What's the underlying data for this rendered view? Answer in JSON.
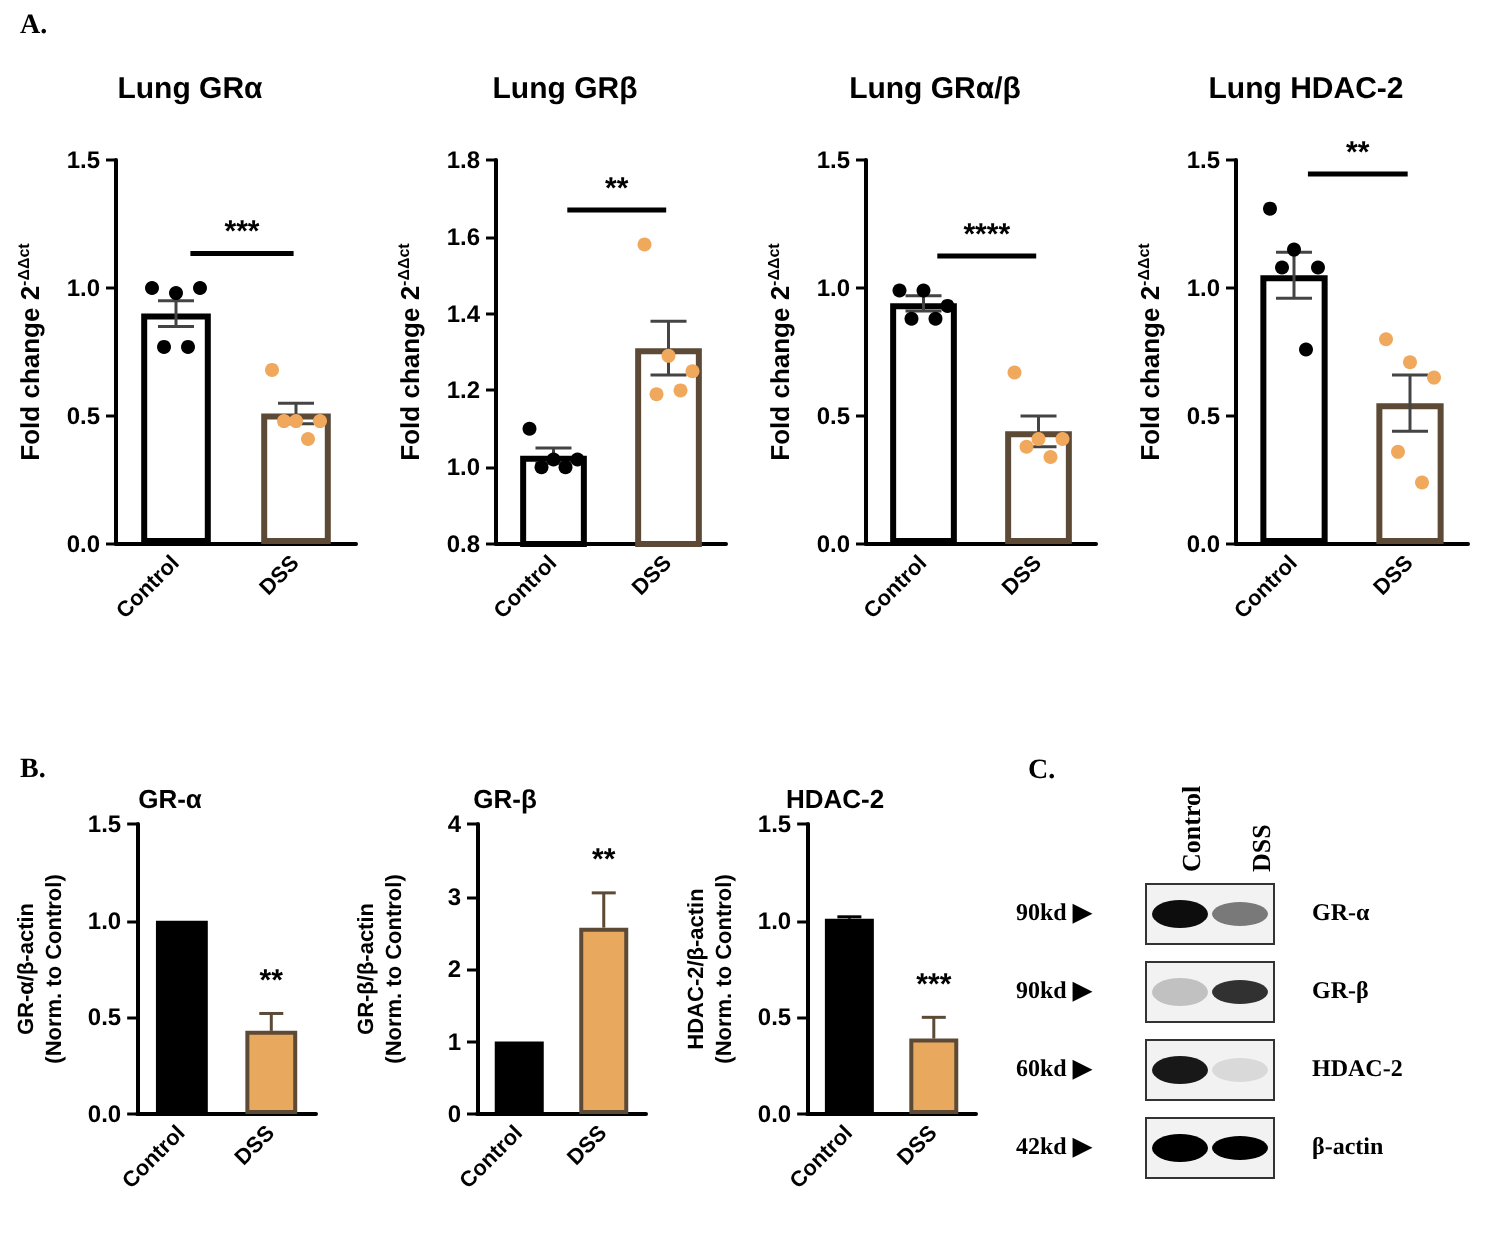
{
  "chart_data": [
    {
      "type": "bar",
      "title": "Lung GRα",
      "ylabel": "Fold change 2$^{-ΔΔct}$",
      "categories": [
        "Control",
        "DSS"
      ],
      "marker": "circle",
      "series": [
        {
          "type": "bar",
          "colors": [
            "#ffffff",
            "#ffffff"
          ],
          "values": [
            0.9,
            0.51
          ],
          "errors": [
            0.05,
            0.04
          ]
        },
        {
          "type": "scatter",
          "color": "#000000",
          "x": [
            "Control",
            "Control",
            "Control",
            "Control",
            "Control"
          ],
          "values": [
            1.0,
            0.98,
            1.0,
            0.77,
            0.77
          ]
        },
        {
          "type": "scatter",
          "color": "#f0a95c",
          "x": [
            "DSS",
            "DSS",
            "DSS",
            "DSS",
            "DSS"
          ],
          "values": [
            0.68,
            0.48,
            0.48,
            0.48,
            0.41
          ]
        }
      ],
      "ylim": [
        0,
        1.5
      ],
      "yticks": [
        {
          "value": 0,
          "label": "0.0"
        },
        {
          "value": 0.5,
          "label": "0.5"
        },
        {
          "value": 1,
          "label": "1.0"
        },
        {
          "value": 1.5,
          "label": "1.5"
        }
      ],
      "annotations": [
        "A.",
        "***"
      ]
    },
    {
      "type": "bar",
      "title": "Lung GRβ",
      "ylabel": "Fold change 2$^{-ΔΔct}$",
      "categories": [
        "Control",
        "DSS"
      ],
      "marker": "circle",
      "series": [
        {
          "type": "bar",
          "colors": [
            "#ffffff",
            "#ffffff"
          ],
          "values": [
            1.03,
            1.31
          ],
          "errors": [
            0.02,
            0.07
          ]
        },
        {
          "type": "scatter",
          "color": "#000000",
          "x": [
            "Control",
            "Control",
            "Control",
            "Control",
            "Control"
          ],
          "values": [
            1.1,
            1.02,
            1.02,
            1.0,
            1.0
          ]
        },
        {
          "type": "scatter",
          "color": "#f0a95c",
          "x": [
            "DSS",
            "DSS",
            "DSS",
            "DSS",
            "DSS"
          ],
          "values": [
            1.58,
            1.29,
            1.25,
            1.19,
            1.2
          ]
        }
      ],
      "ylim": [
        0.8,
        1.8
      ],
      "yticks": [
        {
          "value": 0.8,
          "label": "0.8"
        },
        {
          "value": 1,
          "label": "1.0"
        },
        {
          "value": 1.2,
          "label": "1.2"
        },
        {
          "value": 1.4,
          "label": "1.4"
        },
        {
          "value": 1.6,
          "label": "1.6"
        },
        {
          "value": 1.8,
          "label": "1.8"
        }
      ],
      "annotations": [
        "**"
      ]
    },
    {
      "type": "bar",
      "title": "Lung GRα/β",
      "ylabel": "Fold change 2$^{-ΔΔct}$",
      "categories": [
        "Control",
        "DSS"
      ],
      "marker": "circle",
      "series": [
        {
          "type": "bar",
          "colors": [
            "#ffffff",
            "#ffffff"
          ],
          "values": [
            0.94,
            0.44
          ],
          "errors": [
            0.03,
            0.06
          ]
        },
        {
          "type": "scatter",
          "color": "#000000",
          "x": [
            "Control",
            "Control",
            "Control",
            "Control",
            "Control"
          ],
          "values": [
            0.99,
            0.99,
            0.93,
            0.88,
            0.88
          ]
        },
        {
          "type": "scatter",
          "color": "#f0a95c",
          "x": [
            "DSS",
            "DSS",
            "DSS",
            "DSS",
            "DSS"
          ],
          "values": [
            0.67,
            0.41,
            0.41,
            0.38,
            0.34
          ]
        }
      ],
      "ylim": [
        0,
        1.5
      ],
      "yticks": [
        {
          "value": 0,
          "label": "0.0"
        },
        {
          "value": 0.5,
          "label": "0.5"
        },
        {
          "value": 1,
          "label": "1.0"
        },
        {
          "value": 1.5,
          "label": "1.5"
        }
      ],
      "annotations": [
        "****"
      ]
    },
    {
      "type": "bar",
      "title": "Lung HDAC-2",
      "ylabel": "Fold change 2$^{-ΔΔct}$",
      "categories": [
        "Control",
        "DSS"
      ],
      "marker": "circle",
      "series": [
        {
          "type": "bar",
          "colors": [
            "#ffffff",
            "#ffffff"
          ],
          "values": [
            1.05,
            0.55
          ],
          "errors": [
            0.09,
            0.11
          ]
        },
        {
          "type": "scatter",
          "color": "#000000",
          "x": [
            "Control",
            "Control",
            "Control",
            "Control",
            "Control"
          ],
          "values": [
            1.31,
            1.15,
            1.08,
            1.08,
            0.76
          ]
        },
        {
          "type": "scatter",
          "color": "#f0a95c",
          "x": [
            "DSS",
            "DSS",
            "DSS",
            "DSS",
            "DSS"
          ],
          "values": [
            0.8,
            0.71,
            0.65,
            0.36,
            0.24
          ]
        }
      ],
      "ylim": [
        0,
        1.5
      ],
      "yticks": [
        {
          "value": 0,
          "label": "0.0"
        },
        {
          "value": 0.5,
          "label": "0.5"
        },
        {
          "value": 1,
          "label": "1.0"
        },
        {
          "value": 1.5,
          "label": "1.5"
        }
      ],
      "annotations": [
        "**"
      ]
    },
    {
      "type": "bar",
      "title": "GR-α",
      "ylabel": "GR-α/β-actin\n(Norm. to Control)",
      "categories": [
        "Control",
        "DSS"
      ],
      "series": [
        {
          "type": "bar",
          "colors": [
            "#000000",
            "#e8a95e"
          ],
          "values": [
            1.0,
            0.43
          ],
          "errors": [
            null,
            [
              0.43,
              0.52
            ]
          ]
        }
      ],
      "ylim": [
        0,
        1.5
      ],
      "yticks": [
        {
          "value": 0,
          "label": "0.0"
        },
        {
          "value": 0.5,
          "label": "0.5"
        },
        {
          "value": 1,
          "label": "1.0"
        },
        {
          "value": 1.5,
          "label": "1.5"
        }
      ],
      "annotations": [
        "B.",
        "**"
      ]
    },
    {
      "type": "bar",
      "title": "GR-β",
      "ylabel": "GR-β/β-actin\n(Norm. to Control)",
      "categories": [
        "Control",
        "DSS"
      ],
      "series": [
        {
          "type": "bar",
          "colors": [
            "#000000",
            "#e8a95e"
          ],
          "values": [
            1.0,
            2.57
          ],
          "errors": [
            null,
            [
              2.57,
              3.05
            ]
          ]
        }
      ],
      "ylim": [
        0,
        4
      ],
      "yticks": [
        0,
        1,
        2,
        3,
        4
      ],
      "annotations": [
        "**"
      ]
    },
    {
      "type": "bar",
      "title": "HDAC-2",
      "ylabel": "HDAC-2/β-actin\n(Norm. to Control)",
      "categories": [
        "Control",
        "DSS"
      ],
      "series": [
        {
          "type": "bar",
          "colors": [
            "#000000",
            "#e8a95e"
          ],
          "values": [
            1.01,
            0.39
          ],
          "errors": [
            [
              1.01,
              1.02
            ],
            [
              0.39,
              0.5
            ]
          ]
        }
      ],
      "ylim": [
        0,
        1.5
      ],
      "yticks": [
        {
          "value": 0,
          "label": "0.0"
        },
        {
          "value": 0.5,
          "label": "0.5"
        },
        {
          "value": 1,
          "label": "1.0"
        },
        {
          "value": 1.5,
          "label": "1.5"
        }
      ],
      "annotations": [
        "***"
      ]
    },
    {
      "type": "other",
      "title": "C.",
      "annotations": [
        "Control",
        "DSS",
        "90kd ▶",
        "GR-α",
        "90kd ▶",
        "GR-β",
        "60kd ▶",
        "HDAC-2",
        "42kd ▶",
        "β-actin"
      ]
    }
  ]
}
